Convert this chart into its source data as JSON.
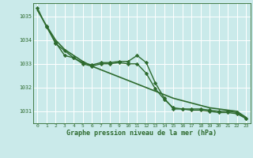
{
  "background_color": "#caeaea",
  "grid_color": "#ffffff",
  "line_color": "#2d6a2d",
  "marker_color": "#2d6a2d",
  "xlabel": "Graphe pression niveau de la mer (hPa)",
  "xlabel_color": "#2d6a2d",
  "ylabel_color": "#2d6a2d",
  "xlim": [
    -0.5,
    23.5
  ],
  "ylim": [
    1030.5,
    1035.55
  ],
  "yticks": [
    1031,
    1032,
    1033,
    1034,
    1035
  ],
  "xticks": [
    0,
    1,
    2,
    3,
    4,
    5,
    6,
    7,
    8,
    9,
    10,
    11,
    12,
    13,
    14,
    15,
    16,
    17,
    18,
    19,
    20,
    21,
    22,
    23
  ],
  "series": [
    {
      "x": [
        0,
        1,
        2,
        3,
        4,
        5,
        6,
        7,
        8,
        9,
        10,
        11,
        12,
        13,
        14,
        15,
        16,
        17,
        18,
        19,
        20,
        21,
        22,
        23
      ],
      "y": [
        1035.25,
        1034.6,
        1034.0,
        1033.6,
        1033.35,
        1033.1,
        1032.9,
        1032.75,
        1032.6,
        1032.45,
        1032.3,
        1032.15,
        1032.0,
        1031.85,
        1031.7,
        1031.55,
        1031.45,
        1031.35,
        1031.25,
        1031.15,
        1031.1,
        1031.05,
        1031.0,
        1030.75
      ],
      "marker": null,
      "linewidth": 1.2
    },
    {
      "x": [
        0,
        1,
        2,
        3,
        4,
        5,
        6,
        7,
        8,
        9,
        10,
        11,
        12,
        13,
        14,
        15,
        16,
        17,
        18,
        19,
        20,
        21,
        22,
        23
      ],
      "y": [
        1035.35,
        1034.55,
        1033.9,
        1033.35,
        1033.25,
        1033.05,
        1032.95,
        1033.05,
        1033.05,
        1033.1,
        1033.1,
        1033.35,
        1033.05,
        1032.2,
        1031.55,
        1031.1,
        1031.1,
        1031.1,
        1031.1,
        1031.05,
        1031.0,
        1031.0,
        1030.95,
        1030.7
      ],
      "marker": "D",
      "linewidth": 1.0
    },
    {
      "x": [
        1,
        2,
        3,
        4,
        5,
        6,
        7,
        8,
        9,
        10,
        11,
        12,
        13,
        14,
        15,
        16,
        17,
        18,
        19,
        20,
        21,
        22,
        23
      ],
      "y": [
        1034.6,
        1033.85,
        1033.55,
        1033.25,
        1033.0,
        1032.9,
        1033.0,
        1033.0,
        1033.05,
        1033.0,
        1033.0,
        1032.6,
        1031.95,
        1031.5,
        1031.15,
        1031.1,
        1031.05,
        1031.05,
        1031.0,
        1030.95,
        1030.95,
        1030.9,
        1030.7
      ],
      "marker": "D",
      "linewidth": 1.0
    }
  ]
}
